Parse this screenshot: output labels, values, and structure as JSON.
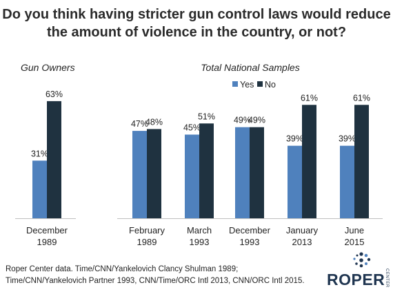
{
  "title_lines": [
    "Do you think having stricter gun control laws would reduce",
    "the amount of violence in the country, or not?"
  ],
  "source_lines": [
    "Roper Center data. Time/CNN/Yankelovich Clancy Shulman 1989;",
    "Time/CNN/Yankelovich Partner 1993, CNN/Time/ORC Intl 2013, CNN/ORC Intl 2015."
  ],
  "logo": {
    "word": "ROPER",
    "sub": "CENTER"
  },
  "colors": {
    "yes": "#4f81bd",
    "no": "#1f3240",
    "axis": "#bfbfbf",
    "text": "#222222"
  },
  "chart_data": {
    "type": "bar",
    "ylim": [
      0,
      70
    ],
    "grid": false,
    "legend_position": "top-center",
    "legend": [
      {
        "name": "Yes",
        "color": "#4f81bd"
      },
      {
        "name": "No",
        "color": "#1f3240"
      }
    ],
    "panels": [
      {
        "label": "Gun Owners",
        "categories": [
          [
            "December",
            "1989"
          ]
        ],
        "series": [
          {
            "name": "Yes",
            "values": [
              31
            ],
            "labels": [
              "31%"
            ]
          },
          {
            "name": "No",
            "values": [
              63
            ],
            "labels": [
              "63%"
            ]
          }
        ]
      },
      {
        "label": "Total National Samples",
        "categories": [
          [
            "February",
            "1989"
          ],
          [
            "March",
            "1993"
          ],
          [
            "December",
            "1993"
          ],
          [
            "January",
            "2013"
          ],
          [
            "June",
            "2015"
          ]
        ],
        "series": [
          {
            "name": "Yes",
            "values": [
              47,
              45,
              49,
              39,
              39
            ],
            "labels": [
              "47%",
              "45%",
              "49%",
              "39%",
              "39%"
            ]
          },
          {
            "name": "No",
            "values": [
              48,
              51,
              49,
              61,
              61
            ],
            "labels": [
              "48%",
              "51%",
              "49%",
              "61%",
              "61%"
            ]
          }
        ]
      }
    ]
  }
}
